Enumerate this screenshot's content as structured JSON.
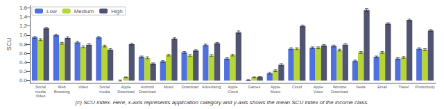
{
  "chart_data": {
    "type": "bar",
    "caption": "(c) SCU index. Here, x-axis represents application category and y-axis shows the mean SCU index of the income class.",
    "ylabel": "SCU",
    "categories": [
      "Social\nmedia\nVideo",
      "Web\nBrowsing",
      "Video",
      "Social\nmedia",
      "Apple\nDownload",
      "Android\nDownload",
      "Music",
      "Download",
      "Advertising",
      "Apple\nCloud",
      "Games",
      "Apple\nMusic",
      "Cloud",
      "Apple\nVideo",
      "Window\nDownload",
      "News",
      "Email",
      "Travel",
      "Productivity"
    ],
    "series": [
      {
        "name": "Low",
        "values": [
          0.95,
          1.0,
          0.84,
          0.95,
          0.0,
          0.52,
          0.42,
          0.62,
          0.78,
          0.48,
          0.01,
          0.16,
          0.7,
          0.72,
          0.76,
          0.43,
          0.52,
          0.48,
          0.7
        ],
        "errors": [
          0.02,
          0.02,
          0.02,
          0.02,
          0.01,
          0.02,
          0.02,
          0.02,
          0.02,
          0.02,
          0.01,
          0.02,
          0.02,
          0.02,
          0.02,
          0.02,
          0.02,
          0.02,
          0.02
        ]
      },
      {
        "name": "Medium",
        "values": [
          0.9,
          0.82,
          0.74,
          0.76,
          0.07,
          0.5,
          0.56,
          0.55,
          0.55,
          0.56,
          0.07,
          0.22,
          0.7,
          0.72,
          0.67,
          0.62,
          0.62,
          0.51,
          0.68
        ],
        "errors": [
          0.02,
          0.02,
          0.02,
          0.02,
          0.01,
          0.02,
          0.02,
          0.02,
          0.02,
          0.02,
          0.01,
          0.02,
          0.02,
          0.02,
          0.02,
          0.02,
          0.02,
          0.02,
          0.02
        ]
      },
      {
        "name": "High",
        "values": [
          1.15,
          0.94,
          0.79,
          0.68,
          0.8,
          0.37,
          0.92,
          0.66,
          0.82,
          1.06,
          0.08,
          0.35,
          1.2,
          0.77,
          0.79,
          1.55,
          1.25,
          1.33,
          1.1
        ],
        "errors": [
          0.02,
          0.02,
          0.02,
          0.02,
          0.02,
          0.02,
          0.02,
          0.02,
          0.02,
          0.03,
          0.01,
          0.02,
          0.02,
          0.02,
          0.02,
          0.03,
          0.02,
          0.02,
          0.02
        ]
      }
    ],
    "ylim": [
      -0.05,
      1.65
    ],
    "yticks": [
      {
        "value": 0,
        "label": "0.0"
      },
      0.2,
      0.4,
      0.6,
      0.8,
      {
        "value": 1,
        "label": "1.0"
      },
      1.2,
      1.4,
      1.6
    ],
    "legend": "upper left",
    "grid": false
  }
}
